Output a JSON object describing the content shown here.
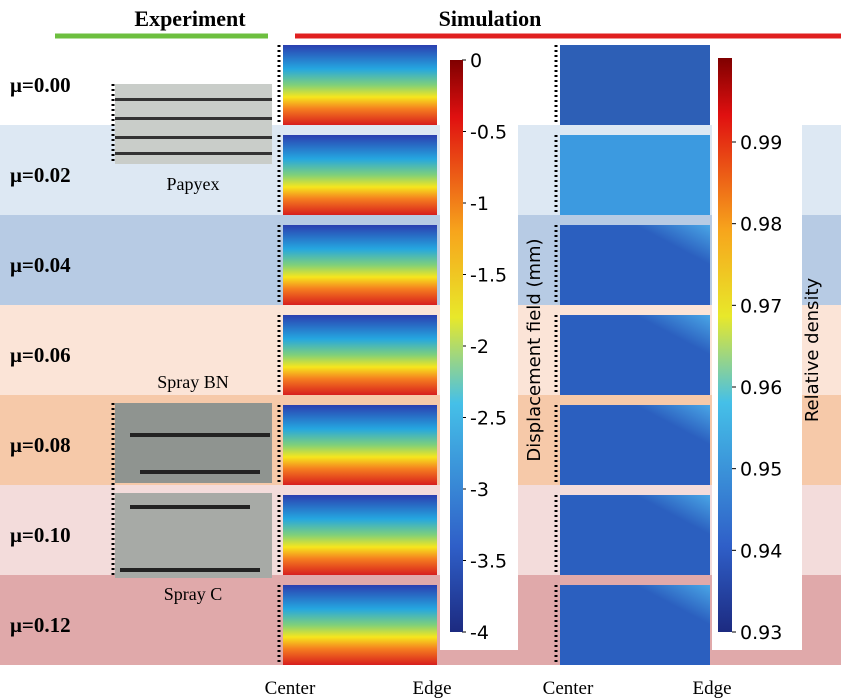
{
  "header": {
    "experiment": "Experiment",
    "simulation": "Simulation"
  },
  "rows": [
    "μ=0.00",
    "μ=0.02",
    "μ=0.04",
    "μ=0.06",
    "μ=0.08",
    "μ=0.10",
    "μ=0.12"
  ],
  "samples": [
    "Papyex",
    "Spray BN",
    "Spray C"
  ],
  "colorbars": [
    {
      "label": "Displacement field (mm)",
      "ticks": [
        0,
        -0.5,
        -1,
        -1.5,
        -2,
        -2.5,
        -3,
        -3.5,
        -4
      ]
    },
    {
      "label": "Relative density",
      "ticks": [
        0.99,
        0.98,
        0.97,
        0.96,
        0.95,
        0.94,
        0.93
      ]
    }
  ],
  "axis_labels": [
    "Center",
    "Edge",
    "Center",
    "Edge"
  ]
}
